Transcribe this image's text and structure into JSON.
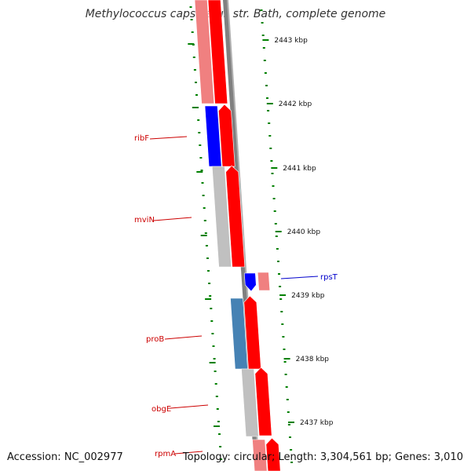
{
  "title": "Methylococcus capsulatus str. Bath, complete genome",
  "footer": {
    "accession": "Accession: NC_002977",
    "summary": "Topology: circular; Length: 3,304,561 bp; Genes: 3,010"
  },
  "colors": {
    "red": "#ff0000",
    "pink": "#f08080",
    "blue": "#0000ff",
    "steel_blue": "#4682b4",
    "gray": "#c0c0c0",
    "backbone": "#808080",
    "tick": "#008000",
    "label_red": "#cc0000",
    "label_blue": "#0000cc"
  },
  "position_labels": [
    "2443 kbp",
    "2442 kbp",
    "2441 kbp",
    "2440 kbp",
    "2439 kbp",
    "2438 kbp",
    "2437 kbp"
  ],
  "gene_labels": [
    {
      "name": "ribF",
      "color": "label_red"
    },
    {
      "name": "mviN",
      "color": "label_red"
    },
    {
      "name": "rpsT",
      "color": "label_blue"
    },
    {
      "name": "proB",
      "color": "label_red"
    },
    {
      "name": "obgE",
      "color": "label_red"
    },
    {
      "name": "rpmA",
      "color": "label_red"
    }
  ]
}
